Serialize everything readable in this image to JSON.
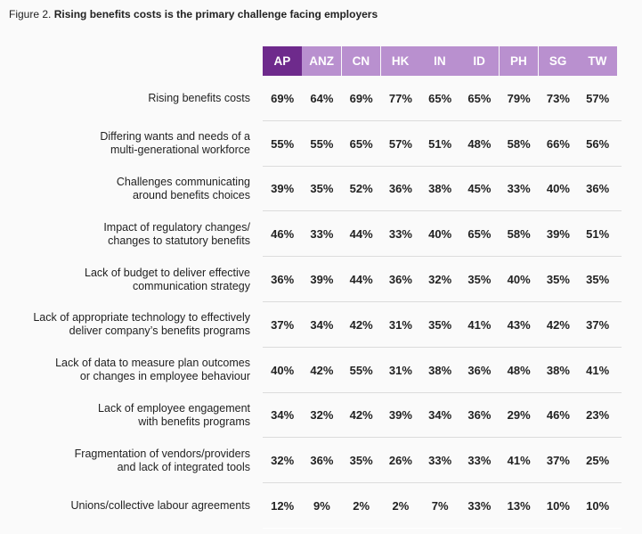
{
  "figure": {
    "prefix": "Figure 2. ",
    "title": "Rising benefits costs is the primary challenge facing employers"
  },
  "colors": {
    "header_highlight": "#6e2a8c",
    "header_regular": "#b990cf"
  },
  "chart_data": {
    "type": "table",
    "title": "Figure 2. Rising benefits costs is the primary challenge facing employers",
    "columns": [
      "AP",
      "ANZ",
      "CN",
      "HK",
      "IN",
      "ID",
      "PH",
      "SG",
      "TW"
    ],
    "rows": [
      {
        "label": [
          "Rising benefits costs"
        ],
        "values": [
          "69%",
          "64%",
          "69%",
          "77%",
          "65%",
          "65%",
          "79%",
          "73%",
          "57%"
        ]
      },
      {
        "label": [
          "Differing wants and needs of a",
          "multi-generational workforce"
        ],
        "values": [
          "55%",
          "55%",
          "65%",
          "57%",
          "51%",
          "48%",
          "58%",
          "66%",
          "56%"
        ]
      },
      {
        "label": [
          "Challenges communicating",
          "around benefits choices"
        ],
        "values": [
          "39%",
          "35%",
          "52%",
          "36%",
          "38%",
          "45%",
          "33%",
          "40%",
          "36%"
        ]
      },
      {
        "label": [
          "Impact of regulatory changes/",
          "changes to statutory benefits"
        ],
        "values": [
          "46%",
          "33%",
          "44%",
          "33%",
          "40%",
          "65%",
          "58%",
          "39%",
          "51%"
        ]
      },
      {
        "label": [
          "Lack of budget to deliver effective",
          "communication strategy"
        ],
        "values": [
          "36%",
          "39%",
          "44%",
          "36%",
          "32%",
          "35%",
          "40%",
          "35%",
          "35%"
        ]
      },
      {
        "label": [
          "Lack of appropriate technology to effectively",
          "deliver company’s benefits programs"
        ],
        "values": [
          "37%",
          "34%",
          "42%",
          "31%",
          "35%",
          "41%",
          "43%",
          "42%",
          "37%"
        ]
      },
      {
        "label": [
          "Lack of data to measure plan outcomes",
          "or changes in employee behaviour"
        ],
        "values": [
          "40%",
          "42%",
          "55%",
          "31%",
          "38%",
          "36%",
          "48%",
          "38%",
          "41%"
        ]
      },
      {
        "label": [
          "Lack of employee engagement",
          "with benefits programs"
        ],
        "values": [
          "34%",
          "32%",
          "42%",
          "39%",
          "34%",
          "36%",
          "29%",
          "46%",
          "23%"
        ]
      },
      {
        "label": [
          "Fragmentation of vendors/providers",
          "and lack of integrated tools"
        ],
        "values": [
          "32%",
          "36%",
          "35%",
          "26%",
          "33%",
          "33%",
          "41%",
          "37%",
          "25%"
        ]
      },
      {
        "label": [
          "Unions/collective labour agreements"
        ],
        "values": [
          "12%",
          "9%",
          "2%",
          "2%",
          "7%",
          "33%",
          "13%",
          "10%",
          "10%"
        ]
      }
    ]
  }
}
